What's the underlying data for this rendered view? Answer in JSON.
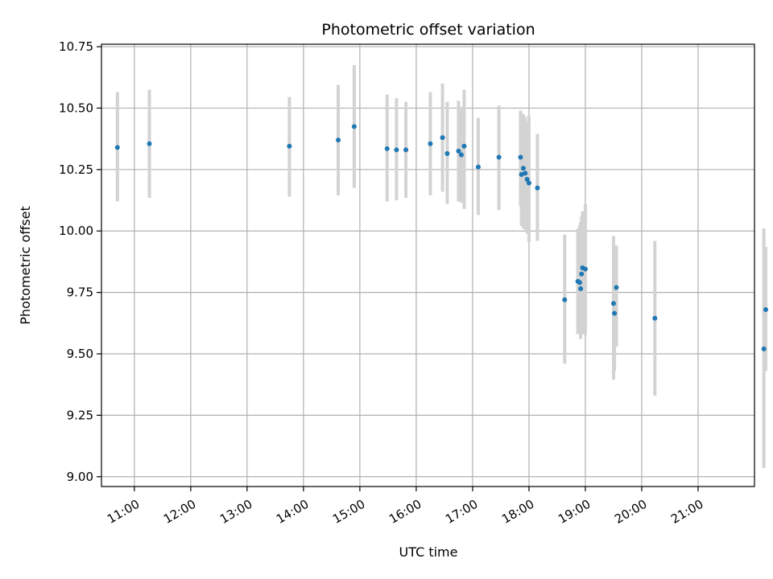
{
  "chart_data": {
    "type": "scatter",
    "title": "Photometric offset variation",
    "xlabel": "UTC time",
    "ylabel": "Photometric offset",
    "xlim": [
      "10:25",
      "22:00"
    ],
    "ylim": [
      8.96,
      10.76
    ],
    "grid": true,
    "x_ticks": [
      "11:00",
      "12:00",
      "13:00",
      "14:00",
      "15:00",
      "16:00",
      "17:00",
      "18:00",
      "19:00",
      "20:00",
      "21:00"
    ],
    "y_ticks": [
      9.0,
      9.25,
      9.5,
      9.75,
      10.0,
      10.25,
      10.5,
      10.75
    ],
    "y_tick_labels": [
      "9.00",
      "9.25",
      "9.50",
      "9.75",
      "10.00",
      "10.25",
      "10.50",
      "10.75"
    ],
    "colors": {
      "point": "#1f77b4",
      "errorbar": "#d3d3d3"
    },
    "points": [
      {
        "x": "10:42",
        "y": 10.34,
        "lo": 10.12,
        "hi": 10.565
      },
      {
        "x": "11:16",
        "y": 10.355,
        "lo": 10.135,
        "hi": 10.575
      },
      {
        "x": "13:45",
        "y": 10.345,
        "lo": 10.14,
        "hi": 10.545
      },
      {
        "x": "14:37",
        "y": 10.37,
        "lo": 10.145,
        "hi": 10.595
      },
      {
        "x": "14:54",
        "y": 10.425,
        "lo": 10.175,
        "hi": 10.675
      },
      {
        "x": "15:29",
        "y": 10.335,
        "lo": 10.12,
        "hi": 10.555
      },
      {
        "x": "15:39",
        "y": 10.33,
        "lo": 10.125,
        "hi": 10.54
      },
      {
        "x": "15:49",
        "y": 10.33,
        "lo": 10.135,
        "hi": 10.525
      },
      {
        "x": "16:15",
        "y": 10.355,
        "lo": 10.145,
        "hi": 10.565
      },
      {
        "x": "16:28",
        "y": 10.38,
        "lo": 10.16,
        "hi": 10.6
      },
      {
        "x": "16:33",
        "y": 10.315,
        "lo": 10.11,
        "hi": 10.525
      },
      {
        "x": "16:45",
        "y": 10.325,
        "lo": 10.12,
        "hi": 10.53
      },
      {
        "x": "16:48",
        "y": 10.31,
        "lo": 10.115,
        "hi": 10.505
      },
      {
        "x": "16:51",
        "y": 10.345,
        "lo": 10.09,
        "hi": 10.575
      },
      {
        "x": "17:06",
        "y": 10.26,
        "lo": 10.065,
        "hi": 10.46
      },
      {
        "x": "17:28",
        "y": 10.3,
        "lo": 10.085,
        "hi": 10.51
      },
      {
        "x": "17:51",
        "y": 10.3,
        "lo": 10.1,
        "hi": 10.49
      },
      {
        "x": "17:52",
        "y": 10.23,
        "lo": 10.02,
        "hi": 10.48
      },
      {
        "x": "17:54",
        "y": 10.255,
        "lo": 10.01,
        "hi": 10.475
      },
      {
        "x": "17:56",
        "y": 10.235,
        "lo": 10.005,
        "hi": 10.465
      },
      {
        "x": "17:58",
        "y": 10.21,
        "lo": 9.99,
        "hi": 10.445
      },
      {
        "x": "18:00",
        "y": 10.195,
        "lo": 9.955,
        "hi": 10.47
      },
      {
        "x": "18:09",
        "y": 10.175,
        "lo": 9.96,
        "hi": 10.395
      },
      {
        "x": "18:38",
        "y": 9.72,
        "lo": 9.46,
        "hi": 9.985
      },
      {
        "x": "18:52",
        "y": 9.795,
        "lo": 9.58,
        "hi": 10.01
      },
      {
        "x": "18:54",
        "y": 9.79,
        "lo": 9.58,
        "hi": 10.025
      },
      {
        "x": "18:55",
        "y": 9.765,
        "lo": 9.56,
        "hi": 10.035
      },
      {
        "x": "18:56",
        "y": 9.825,
        "lo": 9.59,
        "hi": 10.06
      },
      {
        "x": "18:57",
        "y": 9.85,
        "lo": 9.58,
        "hi": 10.08
      },
      {
        "x": "19:00",
        "y": 9.845,
        "lo": 9.575,
        "hi": 10.11
      },
      {
        "x": "19:30",
        "y": 9.705,
        "lo": 9.395,
        "hi": 9.98
      },
      {
        "x": "19:31",
        "y": 9.665,
        "lo": 9.43,
        "hi": 9.94
      },
      {
        "x": "19:33",
        "y": 9.77,
        "lo": 9.53,
        "hi": 9.94
      },
      {
        "x": "20:14",
        "y": 9.645,
        "lo": 9.33,
        "hi": 9.96
      },
      {
        "x": "22:10",
        "y": 9.52,
        "lo": 9.035,
        "hi": 10.01
      },
      {
        "x": "22:12",
        "y": 9.68,
        "lo": 9.43,
        "hi": 9.935
      }
    ]
  }
}
